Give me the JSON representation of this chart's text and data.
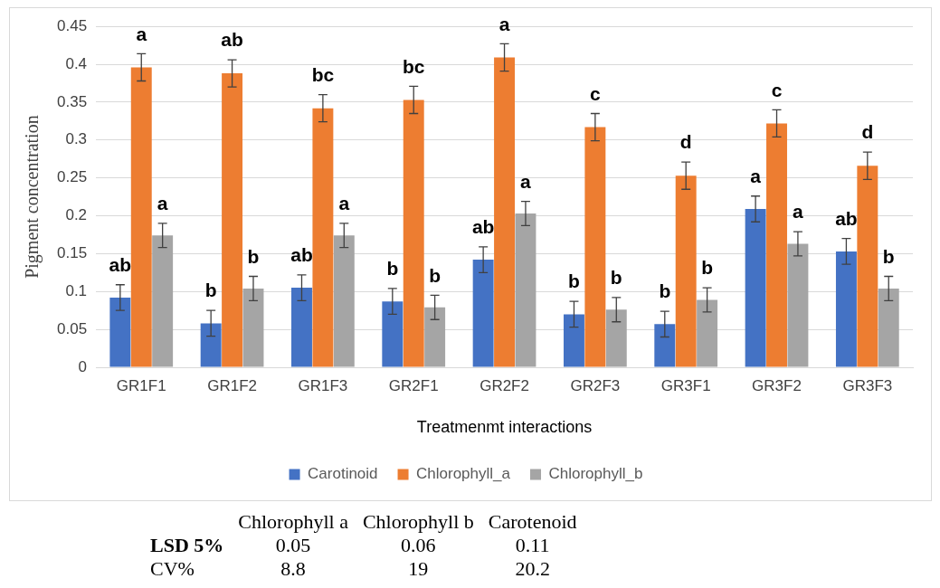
{
  "chart_data": {
    "type": "bar",
    "xlabel": "Treatmenmt interactions",
    "ylabel": "Pigment concentration",
    "categories": [
      "GR1F1",
      "GR1F2",
      "GR1F3",
      "GR2F1",
      "GR2F2",
      "GR2F3",
      "GR3F1",
      "GR3F2",
      "GR3F3"
    ],
    "series": [
      {
        "name": "Carotinoid",
        "color": "#4472c4",
        "values": [
          0.092,
          0.058,
          0.105,
          0.087,
          0.142,
          0.07,
          0.057,
          0.209,
          0.153
        ],
        "errors": [
          0.017,
          0.017,
          0.017,
          0.017,
          0.017,
          0.017,
          0.017,
          0.017,
          0.017
        ],
        "value_labels": [
          "ab",
          "b",
          "ab",
          "b",
          "ab",
          "b",
          "b",
          "a",
          "ab"
        ]
      },
      {
        "name": "Chlorophyll_a",
        "color": "#ed7d31",
        "values": [
          0.396,
          0.388,
          0.342,
          0.353,
          0.409,
          0.317,
          0.253,
          0.322,
          0.266
        ],
        "errors": [
          0.018,
          0.018,
          0.018,
          0.018,
          0.018,
          0.018,
          0.018,
          0.018,
          0.018
        ],
        "value_labels": [
          "a",
          "ab",
          "bc",
          "bc",
          "a",
          "c",
          "d",
          "c",
          "d"
        ]
      },
      {
        "name": "Chlorophyll_b",
        "color": "#a5a5a5",
        "values": [
          0.174,
          0.104,
          0.174,
          0.079,
          0.203,
          0.076,
          0.089,
          0.163,
          0.104
        ],
        "errors": [
          0.016,
          0.016,
          0.016,
          0.016,
          0.016,
          0.016,
          0.016,
          0.016,
          0.016
        ],
        "value_labels": [
          "a",
          "b",
          "a",
          "b",
          "a",
          "b",
          "b",
          "a",
          "b"
        ]
      }
    ],
    "ylim": [
      0,
      0.45
    ],
    "yticks": [
      0,
      0.05,
      0.1,
      0.15,
      0.2,
      0.25,
      0.3,
      0.35,
      0.4,
      0.45
    ],
    "grid": "y",
    "legend": "bottom",
    "annotations": [
      "Chlorophyll  a",
      "Chlorophyll b",
      "Carotenoid",
      "LSD 5%",
      "0.05",
      "0.06",
      "0.11",
      "CV%",
      "8.8",
      "19",
      "20.2"
    ]
  }
}
